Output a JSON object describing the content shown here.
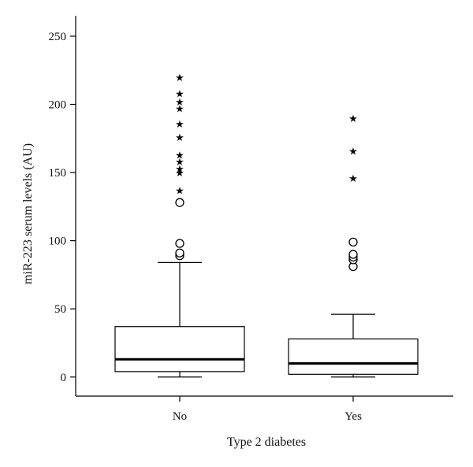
{
  "chart_data": {
    "type": "boxplot",
    "xlabel": "Type 2 diabetes",
    "ylabel": "miR-223 serum levels (AU)",
    "ylim": [
      -14,
      265
    ],
    "yticks": [
      0,
      50,
      100,
      150,
      200,
      250
    ],
    "categories": [
      "No",
      "Yes"
    ],
    "boxes": [
      {
        "category": "No",
        "whisker_low": 0,
        "q1": 4,
        "median": 13,
        "q3": 37,
        "whisker_high": 84,
        "outliers_circle": [
          89,
          91,
          98,
          128
        ],
        "outliers_extreme": [
          137,
          150,
          153,
          158,
          163,
          176,
          186,
          197,
          202,
          208,
          220
        ]
      },
      {
        "category": "Yes",
        "whisker_low": 0,
        "q1": 2,
        "median": 10,
        "q3": 28,
        "whisker_high": 46,
        "outliers_circle": [
          81,
          86,
          88,
          90,
          99
        ],
        "outliers_extreme": [
          146,
          166,
          190
        ]
      }
    ],
    "outlier_symbols": {
      "circle": "○",
      "extreme": "★"
    }
  }
}
